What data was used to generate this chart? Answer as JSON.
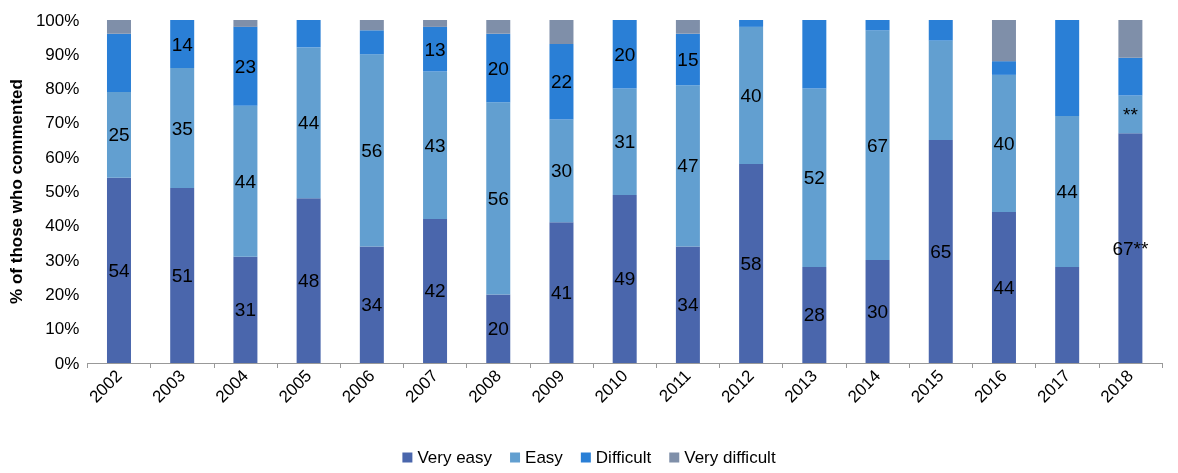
{
  "chart_data": {
    "type": "bar",
    "stacked": true,
    "ylabel": "% of those who commented",
    "categories": [
      "2002",
      "2003",
      "2004",
      "2005",
      "2006",
      "2007",
      "2008",
      "2009",
      "2010",
      "2011",
      "2012",
      "2013",
      "2014",
      "2015",
      "2016",
      "2017",
      "2018"
    ],
    "series": [
      {
        "name": "Very easy",
        "color": "#4a66ac",
        "values": [
          54,
          51,
          31,
          48,
          34,
          42,
          20,
          41,
          49,
          34,
          58,
          28,
          30,
          65,
          44,
          28,
          67
        ],
        "value_labels": [
          "54",
          "51",
          "31",
          "48",
          "34",
          "42",
          "20",
          "41",
          "49",
          "34",
          "58",
          "28",
          "30",
          "65",
          "44",
          null,
          "67**"
        ]
      },
      {
        "name": "Easy",
        "color": "#629fd0",
        "values": [
          25,
          35,
          44,
          44,
          56,
          43,
          56,
          30,
          31,
          47,
          40,
          52,
          67,
          29,
          40,
          44,
          11
        ],
        "value_labels": [
          "25",
          "35",
          "44",
          "44",
          "56",
          "43",
          "56",
          "30",
          "31",
          "47",
          "40",
          "52",
          "67",
          null,
          "40",
          "44",
          "**"
        ]
      },
      {
        "name": "Difficult",
        "color": "#2a7fd6",
        "values": [
          17,
          14,
          23,
          8,
          7,
          13,
          20,
          22,
          20,
          15,
          2,
          20,
          3,
          6,
          4,
          28,
          11
        ],
        "value_labels": [
          null,
          "14",
          "23",
          null,
          null,
          "13",
          "20",
          "22",
          "20",
          "15",
          null,
          null,
          null,
          null,
          null,
          null,
          null
        ]
      },
      {
        "name": "Very difficult",
        "color": "#7f8fa9",
        "values": [
          4,
          0,
          2,
          0,
          3,
          2,
          4,
          7,
          0,
          4,
          0,
          0,
          0,
          0,
          12,
          0,
          11
        ]
      }
    ],
    "ylim": [
      0,
      100
    ],
    "yticks": [
      {
        "value": 0,
        "label": "0%"
      },
      {
        "value": 10,
        "label": "10%"
      },
      {
        "value": 20,
        "label": "20%"
      },
      {
        "value": 30,
        "label": "30%"
      },
      {
        "value": 40,
        "label": "40%"
      },
      {
        "value": 50,
        "label": "50%"
      },
      {
        "value": 60,
        "label": "60%"
      },
      {
        "value": 70,
        "label": "70%"
      },
      {
        "value": 80,
        "label": "80%"
      },
      {
        "value": 90,
        "label": "90%"
      },
      {
        "value": 100,
        "label": "100%"
      }
    ],
    "grid": false,
    "legend": "bottom"
  }
}
